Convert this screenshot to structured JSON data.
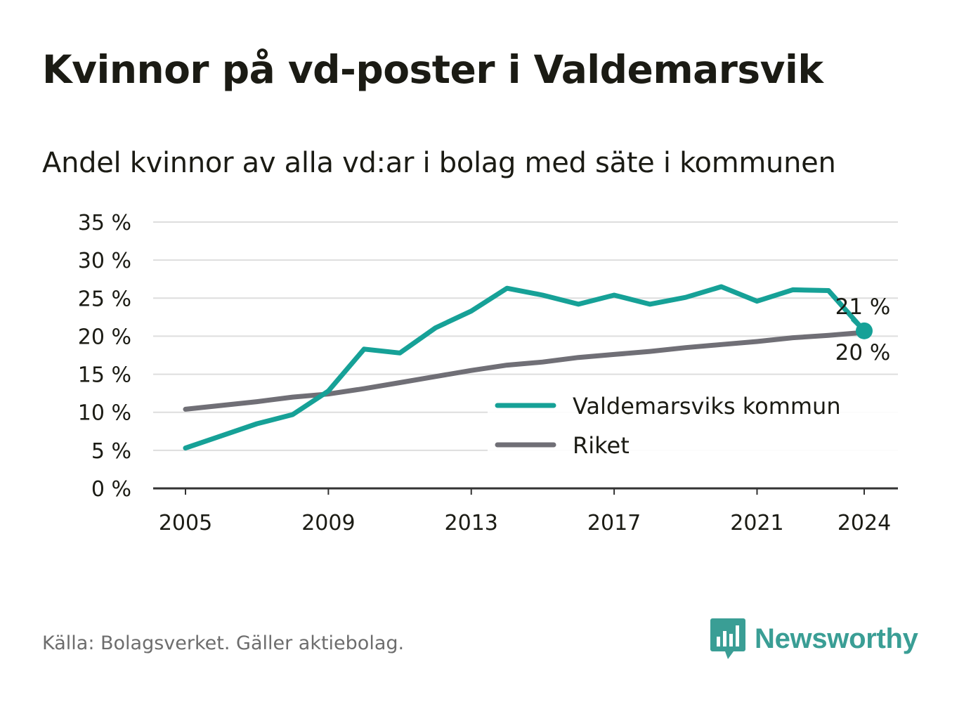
{
  "header": {
    "title": "Kvinnor på vd-poster i Valdemarsvik",
    "subtitle": "Andel kvinnor av alla vd:ar i bolag med säte i kommunen"
  },
  "footer": {
    "source": "Källa: Bolagsverket. Gäller aktiebolag.",
    "brand": "Newsworthy",
    "brand_icon": "newsworthy-logo-icon"
  },
  "colors": {
    "kommun": "#16a197",
    "riket": "#706f76",
    "grid": "#dedede",
    "axis": "#333333"
  },
  "chart_data": {
    "type": "line",
    "x": [
      2005,
      2006,
      2007,
      2008,
      2009,
      2010,
      2011,
      2012,
      2013,
      2014,
      2015,
      2016,
      2017,
      2018,
      2019,
      2020,
      2021,
      2022,
      2023,
      2024
    ],
    "xticks": [
      "2005",
      "2009",
      "2013",
      "2017",
      "2021",
      "2024"
    ],
    "yticks": [
      "0 %",
      "5 %",
      "10 %",
      "15 %",
      "20 %",
      "25 %",
      "30 %",
      "35 %"
    ],
    "ylim": [
      0,
      35
    ],
    "grid": true,
    "legend_position": "bottom-right",
    "series": [
      {
        "name": "Valdemarsviks kommun",
        "values": [
          5.3,
          6.9,
          8.5,
          9.7,
          12.8,
          18.3,
          17.8,
          21.1,
          23.3,
          26.3,
          25.4,
          24.2,
          25.4,
          24.2,
          25.1,
          26.5,
          24.6,
          26.1,
          26.0,
          20.7
        ],
        "end_label": "21 %"
      },
      {
        "name": "Riket",
        "values": [
          10.4,
          10.9,
          11.4,
          12.0,
          12.4,
          13.1,
          13.9,
          14.7,
          15.5,
          16.2,
          16.6,
          17.2,
          17.6,
          18.0,
          18.5,
          18.9,
          19.3,
          19.8,
          20.1,
          20.5
        ],
        "end_label": "20 %"
      }
    ]
  }
}
